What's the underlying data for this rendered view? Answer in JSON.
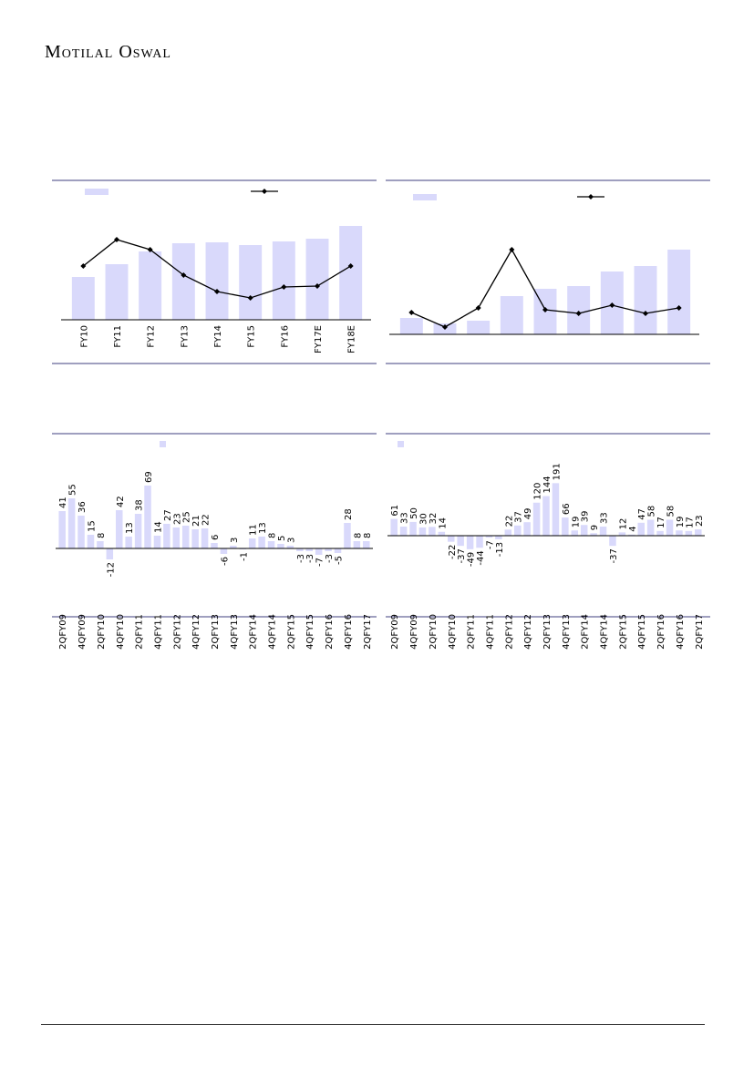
{
  "header": {
    "logo_text": "Motilal Oswal"
  },
  "colors": {
    "bar": "#d9d9fb",
    "line": "#000000",
    "rule": "#3f3f7f"
  },
  "chart_data": [
    {
      "type": "bar",
      "subtype": "bar+line",
      "categories": [
        "FY10",
        "FY11",
        "FY12",
        "FY13",
        "FY14",
        "FY15",
        "FY16",
        "FY17E",
        "FY18E"
      ],
      "series": [
        {
          "kind": "bar",
          "values": [
            47,
            61,
            75,
            84,
            85,
            82,
            86,
            89,
            103
          ]
        },
        {
          "kind": "line",
          "values": [
            59,
            88,
            77,
            49,
            31,
            24,
            36,
            37,
            59
          ]
        }
      ],
      "ylim": [
        0,
        110
      ],
      "legend": "top"
    },
    {
      "type": "bar",
      "subtype": "bar+line",
      "categories": [
        "",
        "",
        "",
        "",
        "",
        "",
        "",
        "",
        ""
      ],
      "series": [
        {
          "kind": "bar",
          "values": [
            18,
            12,
            15,
            42,
            50,
            53,
            69,
            75,
            93
          ]
        },
        {
          "kind": "line",
          "values": [
            24,
            8,
            29,
            93,
            27,
            23,
            32,
            23,
            29
          ]
        }
      ],
      "ylim": [
        0,
        110
      ],
      "legend": "top"
    },
    {
      "type": "bar",
      "categories": [
        "2QFY09",
        "3QFY09",
        "4QFY09",
        "1QFY10",
        "2QFY10",
        "3QFY10",
        "4QFY10",
        "1QFY11",
        "2QFY11",
        "3QFY11",
        "4QFY11",
        "1QFY12",
        "2QFY12",
        "3QFY12",
        "4QFY12",
        "1QFY13",
        "2QFY13",
        "3QFY13",
        "4QFY13",
        "1QFY14",
        "2QFY14",
        "3QFY14",
        "4QFY14",
        "1QFY15",
        "2QFY15",
        "3QFY15",
        "4QFY15",
        "1QFY16",
        "2QFY16",
        "3QFY16",
        "4QFY16",
        "1QFY17",
        "2QFY17"
      ],
      "tick_labels": [
        "2QFY09",
        "4QFY09",
        "2QFY10",
        "4QFY10",
        "2QFY11",
        "4QFY11",
        "2QFY12",
        "4QFY12",
        "2QFY13",
        "4QFY13",
        "2QFY14",
        "4QFY14",
        "2QFY15",
        "4QFY15",
        "2QFY16",
        "4QFY16",
        "2QFY17"
      ],
      "values": [
        41,
        55,
        36,
        15,
        8,
        -12,
        42,
        13,
        38,
        69,
        14,
        27,
        23,
        25,
        21,
        22,
        6,
        -6,
        3,
        -1,
        11,
        13,
        8,
        5,
        3,
        -3,
        -3,
        -7,
        -3,
        -5,
        28,
        8,
        8
      ],
      "ylim": [
        -14,
        72
      ],
      "legend": "top"
    },
    {
      "type": "bar",
      "categories": [
        "2QFY09",
        "3QFY09",
        "4QFY09",
        "1QFY10",
        "2QFY10",
        "3QFY10",
        "4QFY10",
        "1QFY11",
        "2QFY11",
        "3QFY11",
        "4QFY11",
        "1QFY12",
        "2QFY12",
        "3QFY12",
        "4QFY12",
        "1QFY13",
        "2QFY13",
        "3QFY13",
        "4QFY13",
        "1QFY14",
        "2QFY14",
        "3QFY14",
        "4QFY14",
        "1QFY15",
        "2QFY15",
        "3QFY15",
        "4QFY15",
        "1QFY16",
        "2QFY16",
        "3QFY16",
        "4QFY16",
        "1QFY17",
        "2QFY17"
      ],
      "tick_labels": [
        "2QFY09",
        "4QFY09",
        "2QFY10",
        "4QFY10",
        "2QFY11",
        "4QFY11",
        "2QFY12",
        "4QFY12",
        "2QFY13",
        "4QFY13",
        "2QFY14",
        "4QFY14",
        "2QFY15",
        "4QFY15",
        "2QFY16",
        "4QFY16",
        "2QFY17"
      ],
      "values": [
        61,
        33,
        50,
        30,
        32,
        14,
        -22,
        -37,
        -49,
        -44,
        -7,
        -13,
        22,
        37,
        49,
        120,
        144,
        191,
        66,
        19,
        39,
        9,
        33,
        -37,
        12,
        4,
        47,
        58,
        17,
        58,
        19,
        17,
        23
      ],
      "ylim": [
        -55,
        200
      ],
      "legend": "top"
    }
  ]
}
